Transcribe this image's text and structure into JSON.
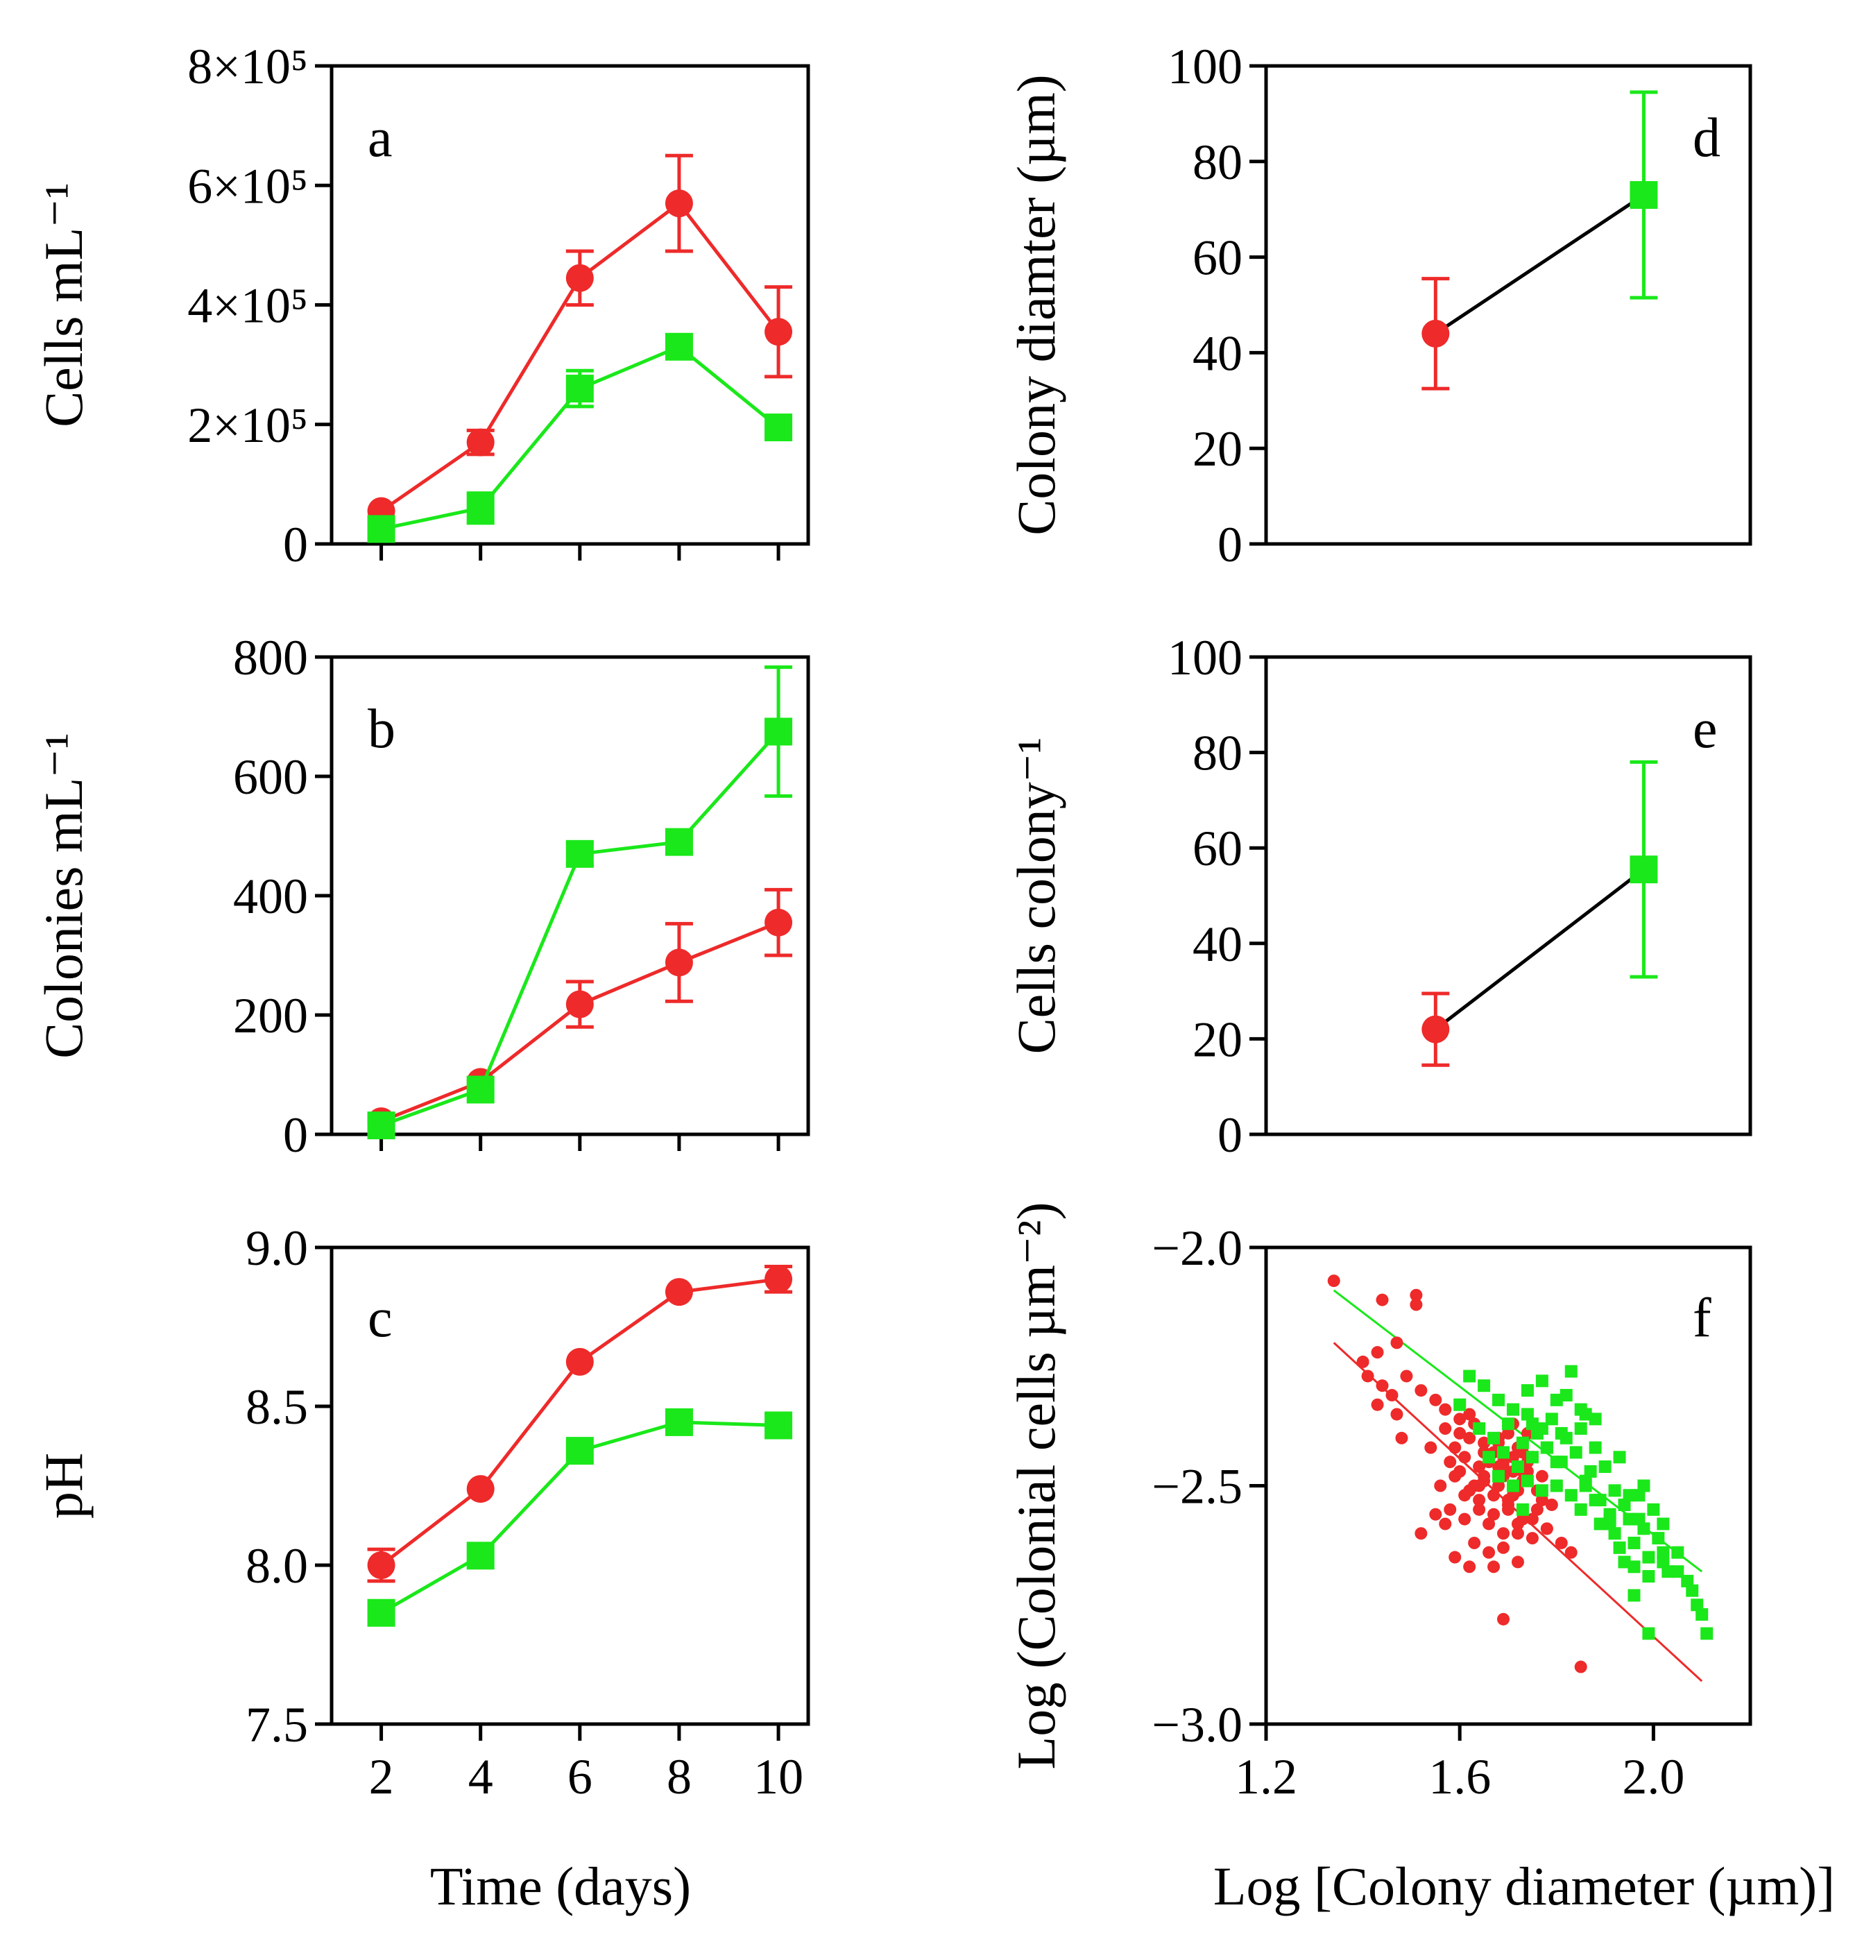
{
  "colors": {
    "red": "#EE2A2A",
    "green": "#1AE81A",
    "axis": "#000000"
  },
  "labels": {
    "x_time": "Time (days)",
    "x_log": "Log [Colony diameter (µm)]"
  },
  "chart_data": [
    {
      "id": "a",
      "panel_label": "a",
      "type": "line",
      "ylabel": "Cells mL⁻¹",
      "xlim": [
        1,
        10.6
      ],
      "ylim": [
        0,
        800000
      ],
      "x_ticks": [
        2,
        4,
        6,
        8,
        10
      ],
      "x_ticklabels": [
        "",
        "",
        "",
        "",
        ""
      ],
      "y_ticks": [
        0,
        200000,
        400000,
        600000,
        800000
      ],
      "y_ticklabels": [
        "0",
        "2×10⁵",
        "4×10⁵",
        "6×10⁵",
        "8×10⁵"
      ],
      "series": [
        {
          "name": "red",
          "marker": "circle",
          "color": "#EE2A2A",
          "x": [
            2,
            4,
            6,
            8,
            10
          ],
          "y": [
            55000,
            170000,
            445000,
            570000,
            355000
          ],
          "err": [
            0,
            20000,
            45000,
            80000,
            75000
          ]
        },
        {
          "name": "green",
          "marker": "square",
          "color": "#1AE81A",
          "x": [
            2,
            4,
            6,
            8,
            10
          ],
          "y": [
            25000,
            60000,
            260000,
            330000,
            195000
          ],
          "err": [
            0,
            25000,
            30000,
            0,
            0
          ]
        }
      ]
    },
    {
      "id": "b",
      "panel_label": "b",
      "type": "line",
      "ylabel": "Colonies mL⁻¹",
      "xlim": [
        1,
        10.6
      ],
      "ylim": [
        0,
        800
      ],
      "x_ticks": [
        2,
        4,
        6,
        8,
        10
      ],
      "x_ticklabels": [
        "",
        "",
        "",
        "",
        ""
      ],
      "y_ticks": [
        0,
        200,
        400,
        600,
        800
      ],
      "y_ticklabels": [
        "0",
        "200",
        "400",
        "600",
        "800"
      ],
      "series": [
        {
          "name": "red",
          "marker": "circle",
          "color": "#EE2A2A",
          "x": [
            2,
            4,
            6,
            8,
            10
          ],
          "y": [
            22,
            88,
            218,
            288,
            355
          ],
          "err": [
            0,
            0,
            38,
            65,
            55
          ]
        },
        {
          "name": "green",
          "marker": "square",
          "color": "#1AE81A",
          "x": [
            2,
            4,
            6,
            8,
            10
          ],
          "y": [
            15,
            75,
            470,
            490,
            675
          ],
          "err": [
            15,
            0,
            18,
            18,
            108
          ]
        }
      ]
    },
    {
      "id": "c",
      "panel_label": "c",
      "type": "line",
      "ylabel": "pH",
      "xlabel": "Time (days)",
      "xlim": [
        1,
        10.6
      ],
      "ylim": [
        7.5,
        9.0
      ],
      "x_ticks": [
        2,
        4,
        6,
        8,
        10
      ],
      "x_ticklabels": [
        "2",
        "4",
        "6",
        "8",
        "10"
      ],
      "y_ticks": [
        7.5,
        8.0,
        8.5,
        9.0
      ],
      "y_ticklabels": [
        "7.5",
        "8.0",
        "8.5",
        "9.0"
      ],
      "series": [
        {
          "name": "red",
          "marker": "circle",
          "color": "#EE2A2A",
          "x": [
            2,
            4,
            6,
            8,
            10
          ],
          "y": [
            8.0,
            8.24,
            8.64,
            8.86,
            8.9
          ],
          "err": [
            0.05,
            0,
            0,
            0,
            0.04
          ]
        },
        {
          "name": "green",
          "marker": "square",
          "color": "#1AE81A",
          "x": [
            2,
            4,
            6,
            8,
            10
          ],
          "y": [
            7.85,
            8.03,
            8.36,
            8.45,
            8.44
          ],
          "err": [
            0,
            0,
            0,
            0,
            0
          ]
        }
      ]
    },
    {
      "id": "d",
      "panel_label": "d",
      "type": "line",
      "ylabel": "Colony diamter (µm)",
      "xlim": [
        0,
        10
      ],
      "ylim": [
        0,
        100
      ],
      "x_ticks": [],
      "x_ticklabels": [],
      "y_ticks": [
        0,
        20,
        40,
        60,
        80,
        100
      ],
      "y_ticklabels": [
        "0",
        "20",
        "40",
        "60",
        "80",
        "100"
      ],
      "connector_color": "#000000",
      "series": [
        {
          "name": "red",
          "marker": "circle",
          "color": "#EE2A2A",
          "x": [
            3.5
          ],
          "y": [
            44
          ],
          "err": [
            11.5
          ]
        },
        {
          "name": "green",
          "marker": "square",
          "color": "#1AE81A",
          "x": [
            7.8
          ],
          "y": [
            73
          ],
          "err": [
            21.5
          ]
        }
      ]
    },
    {
      "id": "e",
      "panel_label": "e",
      "type": "line",
      "ylabel": "Cells colony⁻¹",
      "xlim": [
        0,
        10
      ],
      "ylim": [
        0,
        100
      ],
      "x_ticks": [],
      "x_ticklabels": [],
      "y_ticks": [
        0,
        20,
        40,
        60,
        80,
        100
      ],
      "y_ticklabels": [
        "0",
        "20",
        "40",
        "60",
        "80",
        "100"
      ],
      "connector_color": "#000000",
      "series": [
        {
          "name": "red",
          "marker": "circle",
          "color": "#EE2A2A",
          "x": [
            3.5
          ],
          "y": [
            22
          ],
          "err": [
            7.5
          ]
        },
        {
          "name": "green",
          "marker": "square",
          "color": "#1AE81A",
          "x": [
            7.8
          ],
          "y": [
            55.5
          ],
          "err": [
            22.5
          ]
        }
      ]
    },
    {
      "id": "f",
      "panel_label": "f",
      "type": "scatter",
      "ylabel": "Log (Colonial cells µm⁻²)",
      "xlabel": "Log [Colony diameter (µm)]",
      "xlim": [
        1.2,
        2.2
      ],
      "ylim": [
        -3.0,
        -2.0
      ],
      "x_ticks": [
        1.2,
        1.6,
        2.0
      ],
      "x_ticklabels": [
        "1.2",
        "1.6",
        "2.0"
      ],
      "y_ticks": [
        -3.0,
        -2.5,
        -2.0
      ],
      "y_ticklabels": [
        "−3.0",
        "−2.5",
        "−2.0"
      ],
      "fits": [
        {
          "name": "green fit",
          "color": "#1AE81A",
          "x": [
            1.34,
            2.1
          ],
          "y": [
            -2.09,
            -2.68
          ]
        },
        {
          "name": "red fit",
          "color": "#EE2A2A",
          "x": [
            1.34,
            2.1
          ],
          "y": [
            -2.2,
            -2.91
          ]
        }
      ],
      "series": [
        {
          "name": "red",
          "marker": "circle",
          "color": "#EE2A2A",
          "x": [
            1.34,
            1.44,
            1.51,
            1.51,
            1.47,
            1.4,
            1.43,
            1.41,
            1.44,
            1.46,
            1.43,
            1.47,
            1.49,
            1.52,
            1.55,
            1.57,
            1.6,
            1.62,
            1.48,
            1.54,
            1.57,
            1.6,
            1.63,
            1.65,
            1.68,
            1.7,
            1.72,
            1.75,
            1.58,
            1.61,
            1.64,
            1.67,
            1.69,
            1.71,
            1.74,
            1.77,
            1.8,
            1.56,
            1.59,
            1.62,
            1.65,
            1.68,
            1.71,
            1.73,
            1.76,
            1.79,
            1.55,
            1.58,
            1.61,
            1.64,
            1.67,
            1.7,
            1.73,
            1.76,
            1.66,
            1.69,
            1.72,
            1.75,
            1.78,
            1.81,
            1.63,
            1.66,
            1.69,
            1.72,
            1.59,
            1.62,
            1.52,
            1.57,
            1.61,
            1.65,
            1.69,
            1.73,
            1.68,
            1.71,
            1.74,
            1.77,
            1.64,
            1.67,
            1.7,
            1.66,
            1.69,
            1.72,
            1.62,
            1.65,
            1.68,
            1.75,
            1.78,
            1.71,
            1.74,
            1.6,
            1.63,
            1.59,
            1.85,
            1.69,
            1.72,
            1.67,
            1.83,
            1.73,
            1.7,
            1.64
          ],
          "y": [
            -2.07,
            -2.11,
            -2.1,
            -2.12,
            -2.2,
            -2.24,
            -2.22,
            -2.27,
            -2.29,
            -2.31,
            -2.33,
            -2.35,
            -2.27,
            -2.3,
            -2.32,
            -2.34,
            -2.36,
            -2.35,
            -2.4,
            -2.42,
            -2.38,
            -2.39,
            -2.37,
            -2.41,
            -2.4,
            -2.39,
            -2.42,
            -2.44,
            -2.45,
            -2.44,
            -2.46,
            -2.43,
            -2.45,
            -2.47,
            -2.45,
            -2.48,
            -2.5,
            -2.5,
            -2.48,
            -2.51,
            -2.49,
            -2.5,
            -2.52,
            -2.49,
            -2.51,
            -2.54,
            -2.56,
            -2.55,
            -2.57,
            -2.53,
            -2.56,
            -2.54,
            -2.57,
            -2.55,
            -2.58,
            -2.6,
            -2.58,
            -2.61,
            -2.59,
            -2.62,
            -2.62,
            -2.64,
            -2.63,
            -2.6,
            -2.65,
            -2.67,
            -2.6,
            -2.58,
            -2.52,
            -2.48,
            -2.46,
            -2.43,
            -2.41,
            -2.44,
            -2.47,
            -2.53,
            -2.5,
            -2.52,
            -2.55,
            -2.45,
            -2.48,
            -2.51,
            -2.4,
            -2.43,
            -2.46,
            -2.57,
            -2.59,
            -2.37,
            -2.39,
            -2.47,
            -2.5,
            -2.42,
            -2.88,
            -2.78,
            -2.66,
            -2.67,
            -2.64,
            -2.47,
            -2.53,
            -2.55
          ]
        },
        {
          "name": "green",
          "marker": "square",
          "color": "#1AE81A",
          "x": [
            1.6,
            1.62,
            1.65,
            1.68,
            1.71,
            1.74,
            1.77,
            1.8,
            1.83,
            1.86,
            1.64,
            1.67,
            1.7,
            1.73,
            1.76,
            1.79,
            1.82,
            1.85,
            1.88,
            1.66,
            1.69,
            1.72,
            1.75,
            1.78,
            1.81,
            1.84,
            1.87,
            1.9,
            1.93,
            1.68,
            1.71,
            1.74,
            1.77,
            1.8,
            1.83,
            1.86,
            1.89,
            1.92,
            1.95,
            1.98,
            1.85,
            1.88,
            1.91,
            1.94,
            1.97,
            2.0,
            1.89,
            1.92,
            1.95,
            1.98,
            2.01,
            1.93,
            1.96,
            1.99,
            2.02,
            1.96,
            1.99,
            2.02,
            2.05,
            2.08,
            2.09,
            2.07,
            2.1,
            2.11,
            2.05,
            2.03,
            1.96,
            1.99,
            1.94,
            1.91,
            1.88,
            1.85,
            1.82,
            1.8,
            1.77,
            1.74,
            1.81,
            1.78,
            1.75,
            1.86,
            1.73,
            2.02,
            1.91,
            1.97
          ],
          "y": [
            -2.33,
            -2.27,
            -2.29,
            -2.32,
            -2.34,
            -2.3,
            -2.28,
            -2.32,
            -2.26,
            -2.35,
            -2.38,
            -2.4,
            -2.37,
            -2.41,
            -2.39,
            -2.36,
            -2.4,
            -2.38,
            -2.42,
            -2.44,
            -2.43,
            -2.46,
            -2.44,
            -2.42,
            -2.45,
            -2.43,
            -2.47,
            -2.46,
            -2.44,
            -2.48,
            -2.5,
            -2.49,
            -2.51,
            -2.5,
            -2.52,
            -2.49,
            -2.53,
            -2.51,
            -2.52,
            -2.5,
            -2.55,
            -2.53,
            -2.56,
            -2.54,
            -2.57,
            -2.55,
            -2.58,
            -2.6,
            -2.57,
            -2.59,
            -2.61,
            -2.63,
            -2.62,
            -2.65,
            -2.64,
            -2.67,
            -2.69,
            -2.66,
            -2.68,
            -2.72,
            -2.75,
            -2.7,
            -2.77,
            -2.81,
            -2.64,
            -2.68,
            -2.73,
            -2.81,
            -2.66,
            -2.58,
            -2.36,
            -2.34,
            -2.31,
            -2.45,
            -2.38,
            -2.35,
            -2.39,
            -2.42,
            -2.37,
            -2.5,
            -2.55,
            -2.58,
            -2.57,
            -2.52
          ]
        }
      ]
    }
  ]
}
